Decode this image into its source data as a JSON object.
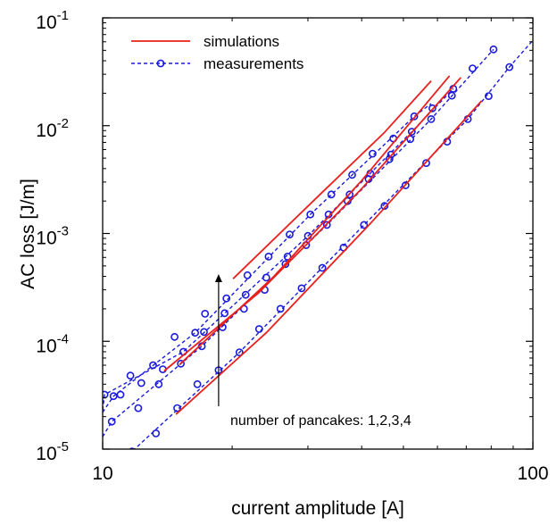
{
  "chart_data": {
    "type": "line",
    "title": "",
    "xlabel": "current amplitude [A]",
    "ylabel": "AC loss [J/m]",
    "xscale": "log",
    "yscale": "log",
    "xlim": [
      10,
      100
    ],
    "ylim": [
      1e-05,
      0.1
    ],
    "x_ticks": [
      {
        "value": 10,
        "label": "10"
      },
      {
        "value": 100,
        "label": "100"
      }
    ],
    "y_ticks": [
      {
        "value": 1e-05,
        "base": "10",
        "exp": "-5"
      },
      {
        "value": 0.0001,
        "base": "10",
        "exp": "-4"
      },
      {
        "value": 0.001,
        "base": "10",
        "exp": "-3"
      },
      {
        "value": 0.01,
        "base": "10",
        "exp": "-2"
      },
      {
        "value": 0.1,
        "base": "10",
        "exp": "-1"
      }
    ],
    "grid": false,
    "legend": {
      "position": "top-left",
      "entries": [
        {
          "label": "simulations",
          "color": "#e8201e",
          "style": "solid"
        },
        {
          "label": "measurements",
          "color": "#1a1adb",
          "style": "dashed-circles"
        }
      ]
    },
    "annotation": {
      "text": "number of pancakes: 1,2,3,4",
      "arrow_from": [
        18.6,
        2.5e-05
      ],
      "arrow_to": [
        18.6,
        0.00042
      ]
    },
    "series": [
      {
        "name": "measurements",
        "group": "1 pancake",
        "color": "#1a1adb",
        "points": [
          [
            11.7,
            9.5e-06
          ],
          [
            13.3,
            1.4e-05
          ],
          [
            14.9,
            2.4e-05
          ],
          [
            16.6,
            4e-05
          ],
          [
            18.6,
            5.4e-05
          ],
          [
            20.8,
            7.9e-05
          ],
          [
            23.1,
            0.00013
          ],
          [
            25.9,
            0.0002
          ],
          [
            29.0,
            0.00031
          ],
          [
            32.4,
            0.00048
          ],
          [
            36.3,
            0.00074
          ],
          [
            40.5,
            0.0012
          ],
          [
            45.2,
            0.0018
          ],
          [
            50.6,
            0.0028
          ],
          [
            56.5,
            0.0045
          ],
          [
            63.2,
            0.0071
          ],
          [
            70.6,
            0.0115
          ],
          [
            78.9,
            0.0188
          ],
          [
            88.2,
            0.035
          ]
        ],
        "fit_curve": [
          [
            10.0,
            6e-06
          ],
          [
            11.7,
            9.5e-06
          ],
          [
            20.8,
            7.9e-05
          ],
          [
            40.5,
            0.0012
          ],
          [
            70.6,
            0.0115
          ],
          [
            88.2,
            0.035
          ],
          [
            100.0,
            0.062
          ]
        ]
      },
      {
        "name": "measurements",
        "group": "2 pancakes",
        "color": "#1a1adb",
        "points": [
          [
            10.5,
            1.8e-05
          ],
          [
            12.1,
            2.4e-05
          ],
          [
            13.5,
            4e-05
          ],
          [
            15.2,
            6.2e-05
          ],
          [
            17.0,
            9e-05
          ],
          [
            19.0,
            0.000135
          ],
          [
            21.3,
            0.0002
          ],
          [
            23.8,
            0.0003
          ],
          [
            26.6,
            0.00052
          ],
          [
            29.7,
            0.00078
          ],
          [
            33.2,
            0.0012
          ],
          [
            37.1,
            0.002
          ],
          [
            41.5,
            0.0032
          ],
          [
            46.4,
            0.0049
          ],
          [
            51.9,
            0.0075
          ],
          [
            58.0,
            0.0115
          ],
          [
            64.8,
            0.019
          ],
          [
            72.4,
            0.034
          ],
          [
            81.0,
            0.051
          ]
        ],
        "fit_curve": [
          [
            10.0,
            1.3e-05
          ],
          [
            10.5,
            1.8e-05
          ],
          [
            17.0,
            9e-05
          ],
          [
            33.2,
            0.0012
          ],
          [
            58.0,
            0.0115
          ],
          [
            81.0,
            0.051
          ]
        ]
      },
      {
        "name": "measurements",
        "group": "3 pancakes",
        "color": "#1a1adb",
        "points": [
          [
            10.1,
            3.2e-05
          ],
          [
            11.0,
            3.2e-05
          ],
          [
            12.3,
            4.1e-05
          ],
          [
            13.8,
            5.5e-05
          ],
          [
            15.4,
            8e-05
          ],
          [
            17.2,
            0.000122
          ],
          [
            19.2,
            0.000182
          ],
          [
            21.5,
            0.00027
          ],
          [
            24.0,
            0.00039
          ],
          [
            26.9,
            0.00061
          ],
          [
            30.0,
            0.00095
          ],
          [
            33.5,
            0.0015
          ],
          [
            37.5,
            0.0023
          ],
          [
            41.9,
            0.0036
          ],
          [
            46.8,
            0.0054
          ],
          [
            52.3,
            0.0088
          ],
          [
            58.4,
            0.0145
          ],
          [
            65.3,
            0.022
          ]
        ],
        "fit_curve": [
          [
            10.0,
            2.3e-05
          ],
          [
            10.1,
            3.2e-05
          ],
          [
            15.4,
            8e-05
          ],
          [
            30.0,
            0.00095
          ],
          [
            52.3,
            0.0088
          ],
          [
            65.3,
            0.022
          ]
        ]
      },
      {
        "name": "measurements",
        "group": "4 pancakes",
        "color": "#1a1adb",
        "points": [
          [
            10.6,
            3.1e-05
          ],
          [
            11.6,
            4.8e-05
          ],
          [
            13.1,
            6e-05
          ],
          [
            14.7,
            0.00011
          ],
          [
            16.4,
            0.00012
          ],
          [
            17.3,
            0.00018
          ],
          [
            19.4,
            0.00025
          ],
          [
            21.7,
            0.00041
          ],
          [
            24.3,
            0.00061
          ],
          [
            27.2,
            0.00098
          ],
          [
            30.4,
            0.0015
          ],
          [
            34.0,
            0.0023
          ],
          [
            38.0,
            0.0035
          ],
          [
            42.4,
            0.0055
          ],
          [
            47.4,
            0.0076
          ],
          [
            53.0,
            0.0122
          ]
        ],
        "fit_curve": [
          [
            10.0,
            2.2e-05
          ],
          [
            10.6,
            3.1e-05
          ],
          [
            16.4,
            0.00012
          ],
          [
            30.4,
            0.0015
          ],
          [
            53.0,
            0.0122
          ],
          [
            58.0,
            0.016
          ]
        ]
      },
      {
        "name": "simulations",
        "group": "1 pancake",
        "color": "#e8201e",
        "points": [
          [
            14.8,
            2.1e-05
          ],
          [
            24.0,
            0.00012
          ],
          [
            42.0,
            0.00125
          ],
          [
            76.0,
            0.017
          ]
        ]
      },
      {
        "name": "simulations",
        "group": "2 pancakes",
        "color": "#e8201e",
        "points": [
          [
            13.9,
            5.3e-05
          ],
          [
            23.0,
            0.00028
          ],
          [
            40.0,
            0.0026
          ],
          [
            68.0,
            0.028
          ]
        ]
      },
      {
        "name": "simulations",
        "group": "3 pancakes",
        "color": "#e8201e",
        "points": [
          [
            15.1,
            6.1e-05
          ],
          [
            25.0,
            0.0004
          ],
          [
            40.0,
            0.0031
          ],
          [
            64.0,
            0.029
          ]
        ]
      },
      {
        "name": "simulations",
        "group": "4 pancakes",
        "color": "#e8201e",
        "points": [
          [
            20.1,
            0.00038
          ],
          [
            32.0,
            0.0023
          ],
          [
            45.0,
            0.0085
          ],
          [
            58.0,
            0.026
          ]
        ]
      }
    ]
  }
}
